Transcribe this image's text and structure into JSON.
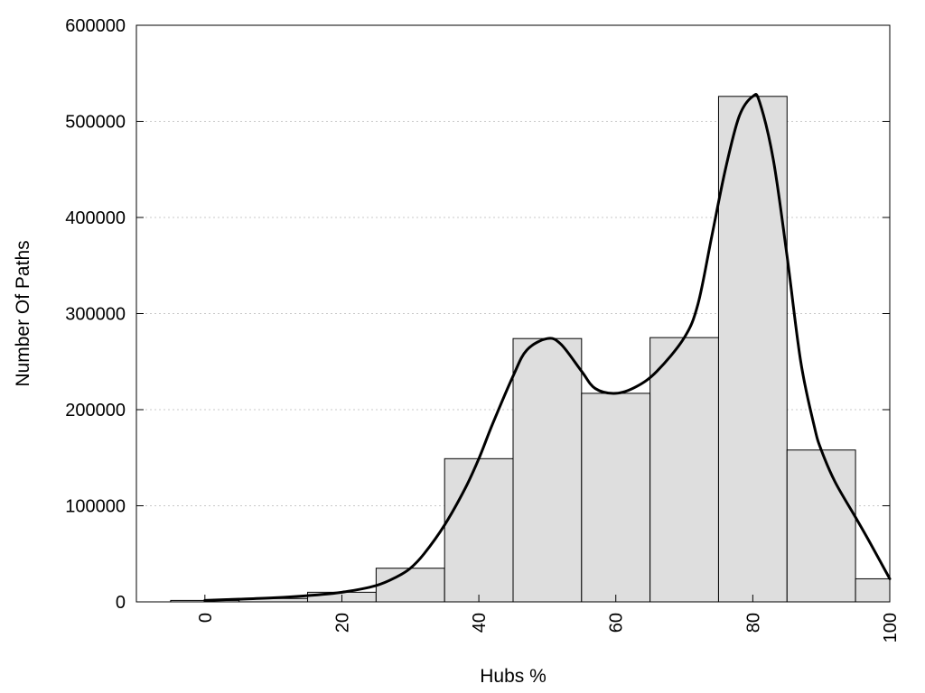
{
  "chart_data": {
    "type": "bar",
    "title": "",
    "xlabel": "Hubs %",
    "ylabel": "Number Of Paths",
    "xlim": [
      -10,
      100
    ],
    "ylim": [
      0,
      600000
    ],
    "x_ticks": [
      0,
      20,
      40,
      60,
      80,
      100
    ],
    "y_ticks": [
      0,
      100000,
      200000,
      300000,
      400000,
      500000,
      600000
    ],
    "grid": "horizontal dotted",
    "bar_width": 10,
    "bars": [
      {
        "x": 0,
        "y": 1500
      },
      {
        "x": 10,
        "y": 3500
      },
      {
        "x": 20,
        "y": 10000
      },
      {
        "x": 30,
        "y": 35000
      },
      {
        "x": 40,
        "y": 149000
      },
      {
        "x": 50,
        "y": 274000
      },
      {
        "x": 60,
        "y": 217000
      },
      {
        "x": 70,
        "y": 275000
      },
      {
        "x": 80,
        "y": 526000
      },
      {
        "x": 90,
        "y": 158000
      },
      {
        "x": 100,
        "y": 24000
      }
    ],
    "smooth_curve": [
      [
        0,
        1500
      ],
      [
        5,
        2800
      ],
      [
        10,
        4200
      ],
      [
        15,
        6500
      ],
      [
        20,
        10000
      ],
      [
        25,
        17000
      ],
      [
        28,
        26000
      ],
      [
        30,
        35000
      ],
      [
        32,
        50000
      ],
      [
        35,
        80000
      ],
      [
        38,
        118000
      ],
      [
        40,
        149000
      ],
      [
        42,
        185000
      ],
      [
        45,
        235000
      ],
      [
        47,
        262000
      ],
      [
        50,
        274000
      ],
      [
        52,
        268000
      ],
      [
        55,
        240000
      ],
      [
        57,
        222000
      ],
      [
        60,
        217000
      ],
      [
        63,
        224000
      ],
      [
        66,
        240000
      ],
      [
        70,
        275000
      ],
      [
        72,
        310000
      ],
      [
        74,
        380000
      ],
      [
        76,
        450000
      ],
      [
        78,
        505000
      ],
      [
        80,
        526000
      ],
      [
        81,
        520000
      ],
      [
        83,
        460000
      ],
      [
        85,
        360000
      ],
      [
        87,
        250000
      ],
      [
        89,
        182000
      ],
      [
        90,
        158000
      ],
      [
        92,
        125000
      ],
      [
        95,
        88000
      ],
      [
        97,
        63000
      ],
      [
        100,
        24000
      ]
    ],
    "colors": {
      "bar_fill": "#dedede",
      "bar_stroke": "#000000",
      "curve": "#000000",
      "grid": "#c8c8c8"
    }
  }
}
